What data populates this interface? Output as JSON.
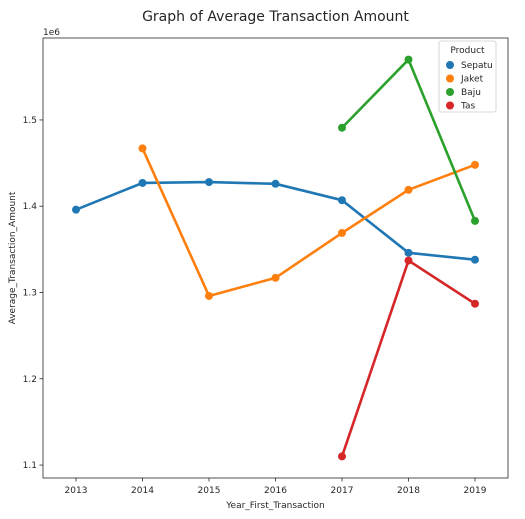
{
  "chart_data": {
    "type": "line",
    "title": "Graph of Average Transaction Amount",
    "xlabel": "Year_First_Transaction",
    "ylabel": "Average_Transaction_Amount",
    "y_offset_text": "1e6",
    "categories": [
      "2013",
      "2014",
      "2015",
      "2016",
      "2017",
      "2018",
      "2019"
    ],
    "ylim": [
      1.085,
      1.595
    ],
    "yticks": [
      "1.1",
      "1.2",
      "1.3",
      "1.4",
      "1.5"
    ],
    "grid": false,
    "markers": true,
    "legend": {
      "title": "Product",
      "placement": "top-right"
    },
    "series": [
      {
        "name": "Sepatu",
        "color": "#1f77b4",
        "values": [
          1.396,
          1.427,
          1.428,
          1.426,
          1.407,
          1.346,
          1.338
        ]
      },
      {
        "name": "Jaket",
        "color": "#ff7f0e",
        "values": [
          null,
          1.467,
          1.296,
          1.317,
          1.369,
          1.419,
          1.448
        ]
      },
      {
        "name": "Baju",
        "color": "#2ca02c",
        "values": [
          null,
          null,
          null,
          null,
          1.491,
          1.57,
          1.383
        ]
      },
      {
        "name": "Tas",
        "color": "#d62728",
        "values": [
          null,
          null,
          null,
          null,
          1.11,
          1.337,
          1.287
        ]
      }
    ]
  }
}
